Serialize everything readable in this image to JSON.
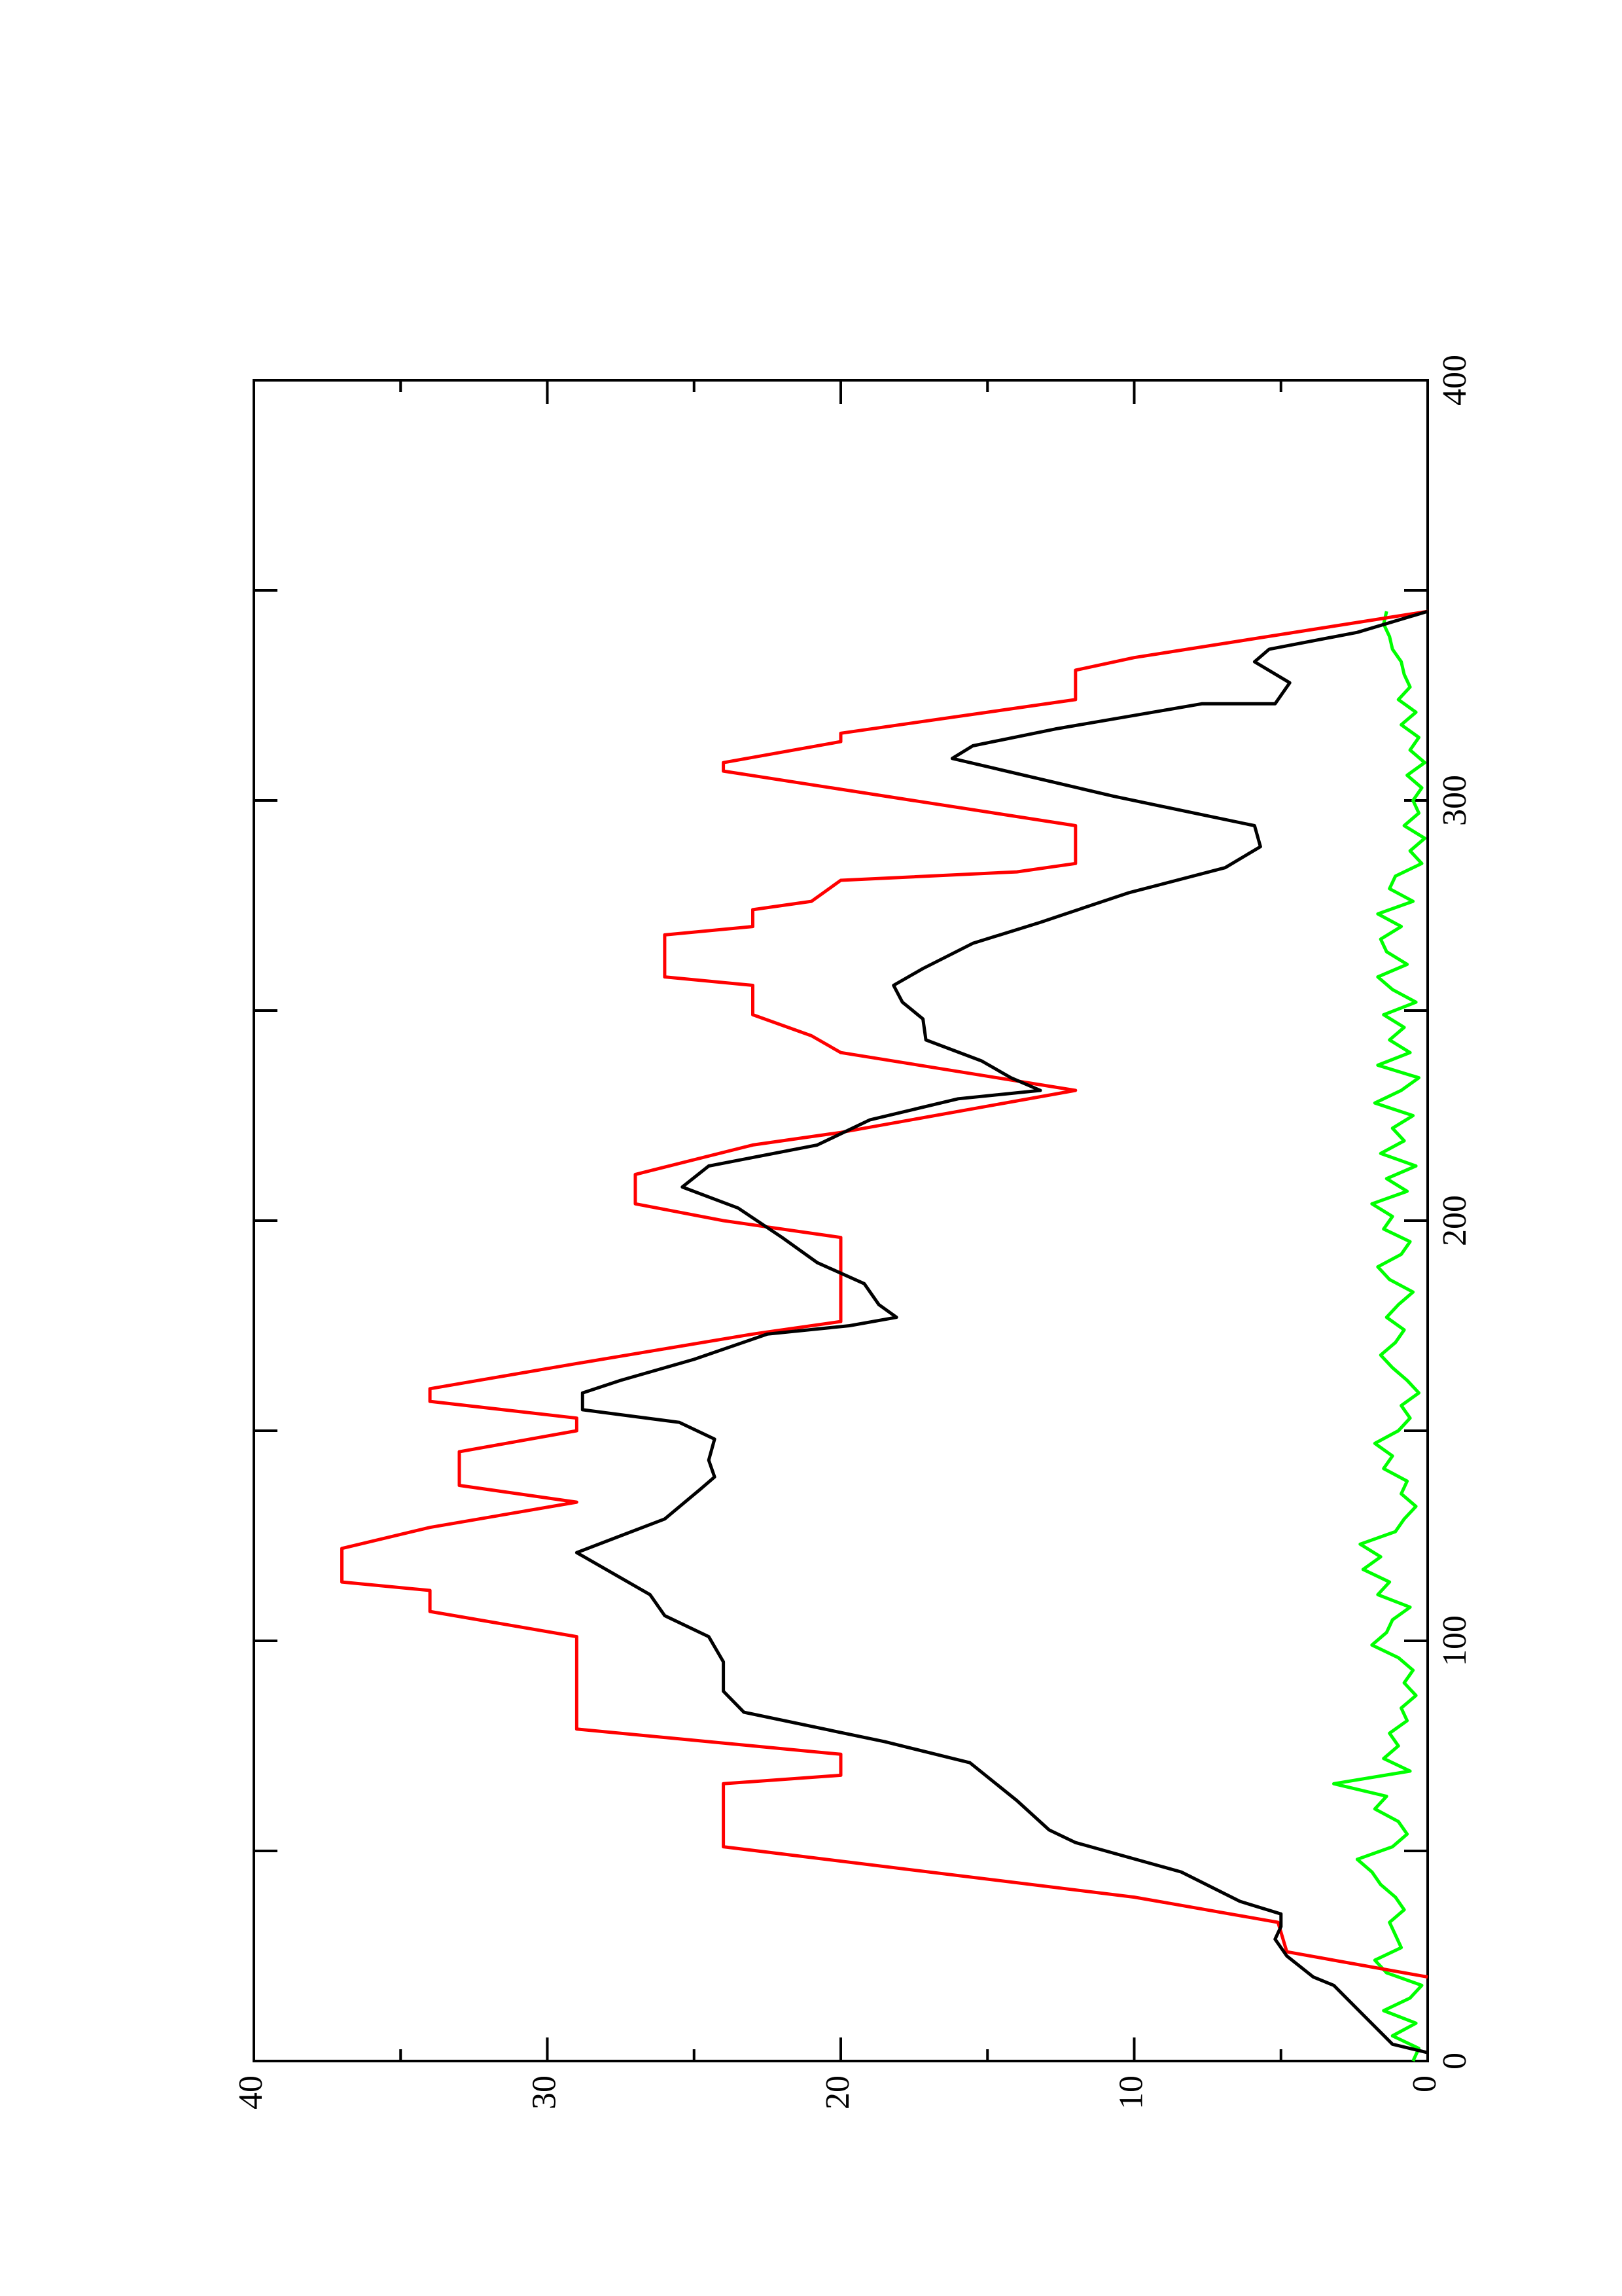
{
  "chart_data": {
    "type": "line",
    "orientation": "rotated",
    "xlim": [
      0,
      400
    ],
    "xticks": [
      0,
      100,
      200,
      300,
      400
    ],
    "xminorticks": [
      50,
      150,
      250,
      350
    ],
    "ylim": [
      0,
      40
    ],
    "yticks": [
      0,
      10,
      20,
      30,
      40
    ],
    "yminorticks": [
      5,
      15,
      25,
      35
    ],
    "series": [
      {
        "color": "#00ff00",
        "x": [
          0,
          3,
          6,
          9,
          12,
          15,
          18,
          21,
          24,
          27,
          30,
          33,
          36,
          39,
          42,
          45,
          48,
          51,
          54,
          57,
          60,
          63,
          66,
          69,
          72,
          75,
          78,
          81,
          84,
          87,
          90,
          93,
          96,
          99,
          102,
          105,
          108,
          111,
          114,
          117,
          120,
          123,
          126,
          129,
          132,
          135,
          138,
          141,
          144,
          147,
          150,
          153,
          156,
          159,
          162,
          165,
          168,
          171,
          174,
          177,
          180,
          183,
          186,
          189,
          192,
          195,
          198,
          201,
          204,
          207,
          210,
          213,
          216,
          219,
          222,
          225,
          228,
          231,
          234,
          237,
          240,
          243,
          246,
          249,
          252,
          255,
          258,
          261,
          264,
          267,
          270,
          273,
          276,
          279,
          282,
          285,
          288,
          291,
          294,
          297,
          300,
          303,
          306,
          309,
          312,
          315,
          318,
          321,
          324,
          327,
          330,
          333,
          336,
          339,
          342,
          345
        ],
        "values": [
          0.5,
          0.3,
          1.2,
          0.4,
          1.5,
          0.6,
          0.2,
          1.4,
          1.8,
          0.9,
          1.1,
          1.3,
          0.8,
          1.1,
          1.6,
          1.9,
          2.4,
          1.2,
          0.7,
          1.0,
          1.8,
          1.4,
          3.2,
          0.6,
          1.5,
          1.0,
          1.3,
          0.7,
          0.9,
          0.4,
          0.8,
          0.5,
          1.0,
          1.9,
          1.4,
          1.2,
          0.6,
          1.7,
          1.3,
          2.2,
          1.6,
          2.3,
          1.1,
          0.8,
          0.4,
          0.9,
          0.7,
          1.5,
          1.2,
          1.8,
          1.0,
          0.6,
          0.9,
          0.3,
          0.7,
          1.2,
          1.6,
          1.1,
          0.8,
          1.4,
          1.0,
          0.5,
          1.3,
          1.7,
          0.9,
          0.6,
          1.5,
          1.2,
          1.9,
          0.7,
          1.4,
          0.4,
          1.6,
          0.8,
          1.2,
          0.5,
          1.8,
          0.9,
          0.3,
          1.7,
          0.6,
          1.3,
          0.8,
          1.5,
          0.4,
          1.2,
          1.7,
          0.7,
          1.4,
          1.6,
          0.9,
          1.7,
          0.5,
          1.3,
          1.1,
          0.2,
          0.6,
          0.1,
          0.8,
          0.3,
          0.5,
          0.2,
          0.7,
          0.1,
          0.6,
          0.3,
          0.9,
          0.4,
          1.0,
          0.6,
          0.8,
          0.9,
          1.2,
          1.3,
          1.5,
          1.4
        ]
      },
      {
        "color": "#ff0000",
        "x": [
          20,
          26,
          33,
          39,
          51,
          66,
          68,
          73,
          75,
          79,
          101,
          107,
          112,
          114,
          122,
          127,
          133,
          137,
          145,
          150,
          153,
          157,
          160,
          166,
          173,
          176,
          196,
          200,
          204,
          211,
          218,
          221,
          231,
          240,
          244,
          249,
          256,
          258,
          268,
          270,
          274,
          276,
          281,
          283,
          285,
          294,
          307,
          309,
          314,
          316,
          324,
          331,
          334,
          345
        ],
        "values": [
          0,
          4.8,
          5.1,
          10,
          24,
          24,
          20,
          20,
          23,
          29,
          29,
          34,
          34,
          37,
          37,
          34,
          29,
          33,
          33,
          29,
          29,
          34,
          34,
          29,
          23,
          20,
          20,
          24,
          27,
          27,
          23,
          20,
          12,
          20,
          21,
          23,
          23,
          26,
          26,
          23,
          23,
          21,
          20,
          14,
          12,
          12,
          24,
          24,
          20,
          20,
          12,
          12,
          10,
          0
        ]
      },
      {
        "color": "#000000",
        "x": [
          2,
          4,
          11,
          18,
          20,
          25,
          29,
          32,
          35,
          38,
          45,
          52,
          55,
          62,
          71,
          76,
          83,
          88,
          95,
          101,
          106,
          111,
          115,
          121,
          125,
          129,
          136,
          139,
          143,
          148,
          152,
          155,
          159,
          162,
          167,
          173,
          175,
          177,
          180,
          185,
          190,
          196,
          203,
          208,
          213,
          218,
          224,
          229,
          231,
          234,
          238,
          243,
          248,
          252,
          256,
          260,
          266,
          271,
          278,
          284,
          289,
          294,
          301,
          310,
          313,
          317,
          323,
          323,
          328,
          333,
          336,
          340,
          345
        ],
        "values": [
          0,
          1.2,
          2.2,
          3.2,
          3.9,
          4.8,
          5.2,
          5,
          5,
          6.4,
          8.4,
          12,
          12.9,
          14,
          15.6,
          18.5,
          23.3,
          24,
          24,
          24.5,
          26,
          26.5,
          27.5,
          29,
          27.5,
          26,
          24.8,
          24.3,
          24.5,
          24.3,
          25.5,
          28.8,
          28.8,
          27.5,
          25,
          22.5,
          19.7,
          18.1,
          18.7,
          19.2,
          20.8,
          22,
          23.5,
          25.4,
          24.5,
          20.8,
          19,
          16,
          13.2,
          14.2,
          15.2,
          17.1,
          17.2,
          17.9,
          18.2,
          17.2,
          15.5,
          13.2,
          10.2,
          6.9,
          5.7,
          5.9,
          10.7,
          16.2,
          15.5,
          12.7,
          7.7,
          5.2,
          4.7,
          5.9,
          5.4,
          2.4,
          0
        ]
      }
    ]
  }
}
